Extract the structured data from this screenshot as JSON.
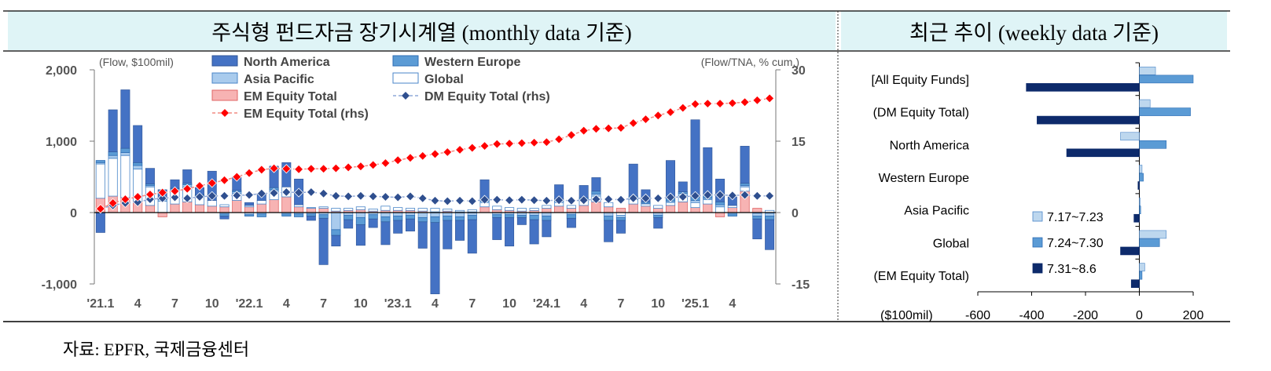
{
  "left_panel": {
    "title": "주식형 펀드자금 장기시계열 (monthly data 기준)",
    "left_unit": "(Flow, $100mil)",
    "right_unit": "(Flow/TNA, % cum.)"
  },
  "right_panel": {
    "title": "최근 추이 (weekly data 기준)",
    "unit": "($100mil)"
  },
  "source": "자료: EPFR,  국제금융센터",
  "colors": {
    "north_america": "#4472c4",
    "western_europe": "#5b9bd5",
    "asia_pacific": "#a9cbed",
    "global": "#ffffff",
    "em_bar": "#f7b3b3",
    "em_line": "#f28b82",
    "em_marker": "#ff0000",
    "dm_marker": "#2f4f8f",
    "week1": "#bdd7ee",
    "week2": "#5b9bd5",
    "week3": "#0d2a6b",
    "header_bg": "#dff4f6"
  },
  "chart_data": [
    {
      "type": "bar",
      "stacked": true,
      "x_tick_labels": [
        "'21.1",
        "4",
        "7",
        "10",
        "'22.1",
        "4",
        "7",
        "10",
        "'23.1",
        "4",
        "7",
        "10",
        "'24.1",
        "4",
        "7",
        "10",
        "'25.1",
        "4"
      ],
      "left_axis": {
        "ticks": [
          "2,000",
          "1,000",
          "0",
          "-1,000"
        ],
        "ylim": [
          -1000,
          2000
        ]
      },
      "right_axis": {
        "ticks": [
          "30",
          "15",
          "0",
          "-15"
        ],
        "ylim": [
          -15,
          30
        ]
      },
      "legend": [
        {
          "name": "North America",
          "kind": "bar"
        },
        {
          "name": "Western Europe",
          "kind": "bar"
        },
        {
          "name": "Asia Pacific",
          "kind": "bar"
        },
        {
          "name": "Global",
          "kind": "bar"
        },
        {
          "name": "EM Equity Total",
          "kind": "bar"
        },
        {
          "name": "DM Equity Total (rhs)",
          "kind": "line"
        },
        {
          "name": "EM Equity Total (rhs)",
          "kind": "line"
        }
      ],
      "legend_placement": "top",
      "months": 55,
      "series": [
        {
          "name": "North America",
          "values": [
            -280,
            600,
            780,
            760,
            280,
            180,
            130,
            180,
            120,
            100,
            -40,
            300,
            60,
            110,
            480,
            380,
            280,
            -60,
            -650,
            -150,
            -120,
            -290,
            -120,
            -320,
            -180,
            -170,
            -370,
            -1000,
            -400,
            -280,
            -470,
            300,
            -310,
            -400,
            -100,
            -340,
            -230,
            180,
            -130,
            160,
            320,
            -300,
            -180,
            460,
            160,
            -150,
            400,
            130,
            1100,
            640,
            290,
            100,
            500,
            -280,
            -420
          ],
          "positive_display": [
            0,
            590,
            820,
            520,
            220,
            130,
            120,
            190,
            100,
            410,
            0,
            190,
            40,
            100,
            300,
            340,
            360,
            0,
            0,
            0,
            0,
            0,
            0,
            0,
            0,
            0,
            0,
            0,
            0,
            0,
            0,
            260,
            0,
            0,
            0,
            0,
            0,
            200,
            0,
            170,
            190,
            0,
            0,
            450,
            170,
            0,
            530,
            140,
            1080,
            650,
            320,
            120,
            520,
            0,
            0
          ],
          "negative_display": [
            -280,
            0,
            0,
            0,
            0,
            0,
            0,
            0,
            0,
            0,
            -40,
            0,
            0,
            0,
            0,
            0,
            0,
            -60,
            -650,
            -150,
            -120,
            -290,
            -120,
            -320,
            -180,
            -170,
            -370,
            -1000,
            -400,
            -280,
            -470,
            0,
            -310,
            -400,
            -100,
            -340,
            -230,
            0,
            -130,
            0,
            0,
            -300,
            -180,
            0,
            0,
            -150,
            0,
            0,
            0,
            0,
            0,
            0,
            0,
            -280,
            -420
          ]
        },
        {
          "name": "Western Europe",
          "values": [
            30,
            50,
            60,
            40,
            20,
            10,
            10,
            20,
            10,
            0,
            -30,
            20,
            -20,
            -40,
            30,
            -30,
            -40,
            -30,
            -50,
            -80,
            -60,
            -100,
            -60,
            -70,
            -60,
            -50,
            -60,
            -80,
            -60,
            -50,
            -60,
            40,
            -40,
            -40,
            -30,
            -60,
            -60,
            30,
            -50,
            20,
            40,
            -60,
            -40,
            30,
            20,
            -30,
            40,
            20,
            50,
            60,
            40,
            -30,
            30,
            -40,
            -50
          ]
        },
        {
          "name": "Asia Pacific",
          "values": [
            20,
            40,
            40,
            50,
            20,
            20,
            20,
            30,
            10,
            0,
            -20,
            20,
            -30,
            -20,
            20,
            -20,
            -20,
            -20,
            -30,
            -240,
            -40,
            -70,
            -30,
            -60,
            -50,
            -40,
            -70,
            -60,
            -50,
            -60,
            -40,
            20,
            -30,
            -30,
            -40,
            -40,
            -50,
            20,
            -30,
            20,
            30,
            -50,
            -30,
            20,
            10,
            -40,
            20,
            30,
            30,
            20,
            30,
            -20,
            20,
            -40,
            -40
          ]
        },
        {
          "name": "Global",
          "values": [
            480,
            530,
            590,
            450,
            260,
            160,
            190,
            210,
            120,
            80,
            30,
            100,
            20,
            50,
            120,
            140,
            30,
            10,
            20,
            40,
            30,
            40,
            30,
            60,
            40,
            30,
            40,
            50,
            30,
            20,
            30,
            60,
            50,
            40,
            40,
            30,
            40,
            50,
            40,
            70,
            80,
            60,
            -40,
            60,
            30,
            40,
            40,
            90,
            70,
            60,
            80,
            30,
            60,
            -10,
            30
          ]
        },
        {
          "name": "EM Equity Total",
          "values": [
            200,
            230,
            210,
            160,
            100,
            -60,
            120,
            150,
            110,
            90,
            80,
            170,
            80,
            120,
            180,
            220,
            80,
            60,
            60,
            20,
            30,
            40,
            20,
            30,
            30,
            30,
            20,
            10,
            20,
            10,
            10,
            80,
            40,
            30,
            20,
            30,
            60,
            90,
            60,
            100,
            150,
            80,
            60,
            120,
            90,
            60,
            100,
            150,
            70,
            120,
            -60,
            70,
            300,
            60,
            -10
          ]
        },
        {
          "name": "DM Equity Total (rhs)",
          "values": [
            0.8,
            1.5,
            2.0,
            2.2,
            2.8,
            3.0,
            3.2,
            3.0,
            3.3,
            3.5,
            3.5,
            3.6,
            3.7,
            4.0,
            4.1,
            4.3,
            4.2,
            4.3,
            4.0,
            3.5,
            3.4,
            3.5,
            3.4,
            3.3,
            3.2,
            3.4,
            3.0,
            2.5,
            2.4,
            2.5,
            2.4,
            2.7,
            2.7,
            2.6,
            2.7,
            2.6,
            2.5,
            2.6,
            2.5,
            2.6,
            2.8,
            2.8,
            2.7,
            3.0,
            3.0,
            3.0,
            3.2,
            3.3,
            3.5,
            3.7,
            3.7,
            3.6,
            3.7,
            3.5,
            3.5
          ]
        },
        {
          "name": "EM Equity Total (rhs)",
          "values": [
            0.8,
            2.0,
            2.8,
            3.3,
            3.8,
            4.2,
            4.5,
            5.0,
            5.6,
            6.2,
            6.8,
            7.5,
            8.3,
            9.0,
            9.3,
            9.2,
            9.1,
            9.2,
            9.2,
            9.3,
            9.5,
            9.7,
            10.0,
            10.4,
            11.0,
            11.5,
            11.9,
            12.3,
            12.7,
            13.2,
            13.6,
            14.0,
            14.4,
            14.5,
            14.6,
            14.7,
            14.8,
            15.4,
            16.3,
            17.2,
            17.6,
            17.7,
            17.8,
            18.8,
            19.6,
            20.4,
            21.1,
            22.0,
            22.8,
            22.9,
            22.9,
            23.0,
            23.2,
            23.6,
            24.0
          ]
        }
      ]
    },
    {
      "type": "bar",
      "orientation": "horizontal",
      "categories": [
        "[All Equity Funds]",
        "(DM Equity Total)",
        "North America",
        "Western Europe",
        "Asia Pacific",
        "Global",
        "(EM Equity Total)"
      ],
      "x_tick_labels": [
        "-600",
        "-400",
        "-200",
        "0",
        "200"
      ],
      "xlim": [
        -600,
        200
      ],
      "legend_placement": "bottom-left",
      "series": [
        {
          "name": "7.17~7.23",
          "values": [
            60,
            40,
            -70,
            10,
            0,
            100,
            20
          ]
        },
        {
          "name": "7.24~7.30",
          "values": [
            200,
            190,
            100,
            15,
            5,
            75,
            10
          ]
        },
        {
          "name": "7.31~8.6",
          "values": [
            -420,
            -380,
            -270,
            -5,
            -20,
            -70,
            -30
          ]
        }
      ]
    }
  ]
}
